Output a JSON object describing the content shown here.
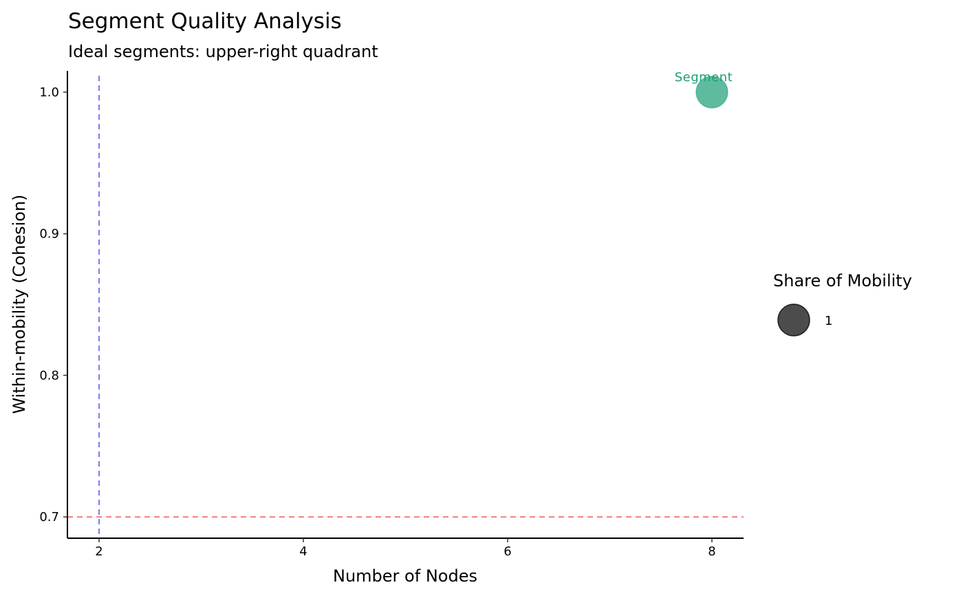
{
  "chart_data": {
    "type": "scatter",
    "title": "Segment Quality Analysis",
    "subtitle": "Ideal segments: upper-right quadrant",
    "xlabel": "Number of Nodes",
    "ylabel": "Within-mobility (Cohesion)",
    "xlim": [
      1.69,
      8.31
    ],
    "ylim": [
      0.685,
      1.015
    ],
    "x_ticks": [
      2,
      4,
      6,
      8
    ],
    "y_ticks": [
      0.7,
      0.8,
      0.9,
      1.0
    ],
    "x_tick_labels": [
      "2",
      "4",
      "6",
      "8"
    ],
    "y_tick_labels": [
      "0.7",
      "0.8",
      "0.9",
      "1.0"
    ],
    "grid": false,
    "reference_lines": [
      {
        "orientation": "vertical",
        "value": 2,
        "color": "#7b7bf0",
        "style": "dashed"
      },
      {
        "orientation": "horizontal",
        "value": 0.7,
        "color": "#f47c7c",
        "style": "dashed"
      }
    ],
    "points": [
      {
        "label": "Segment",
        "x": 8,
        "y": 1.0,
        "share_of_mobility": 1,
        "color": "#1b9e77"
      }
    ],
    "legend": {
      "title": "Share of Mobility",
      "position": "right",
      "entries": [
        {
          "label": "1",
          "color": "#000000"
        }
      ]
    }
  }
}
